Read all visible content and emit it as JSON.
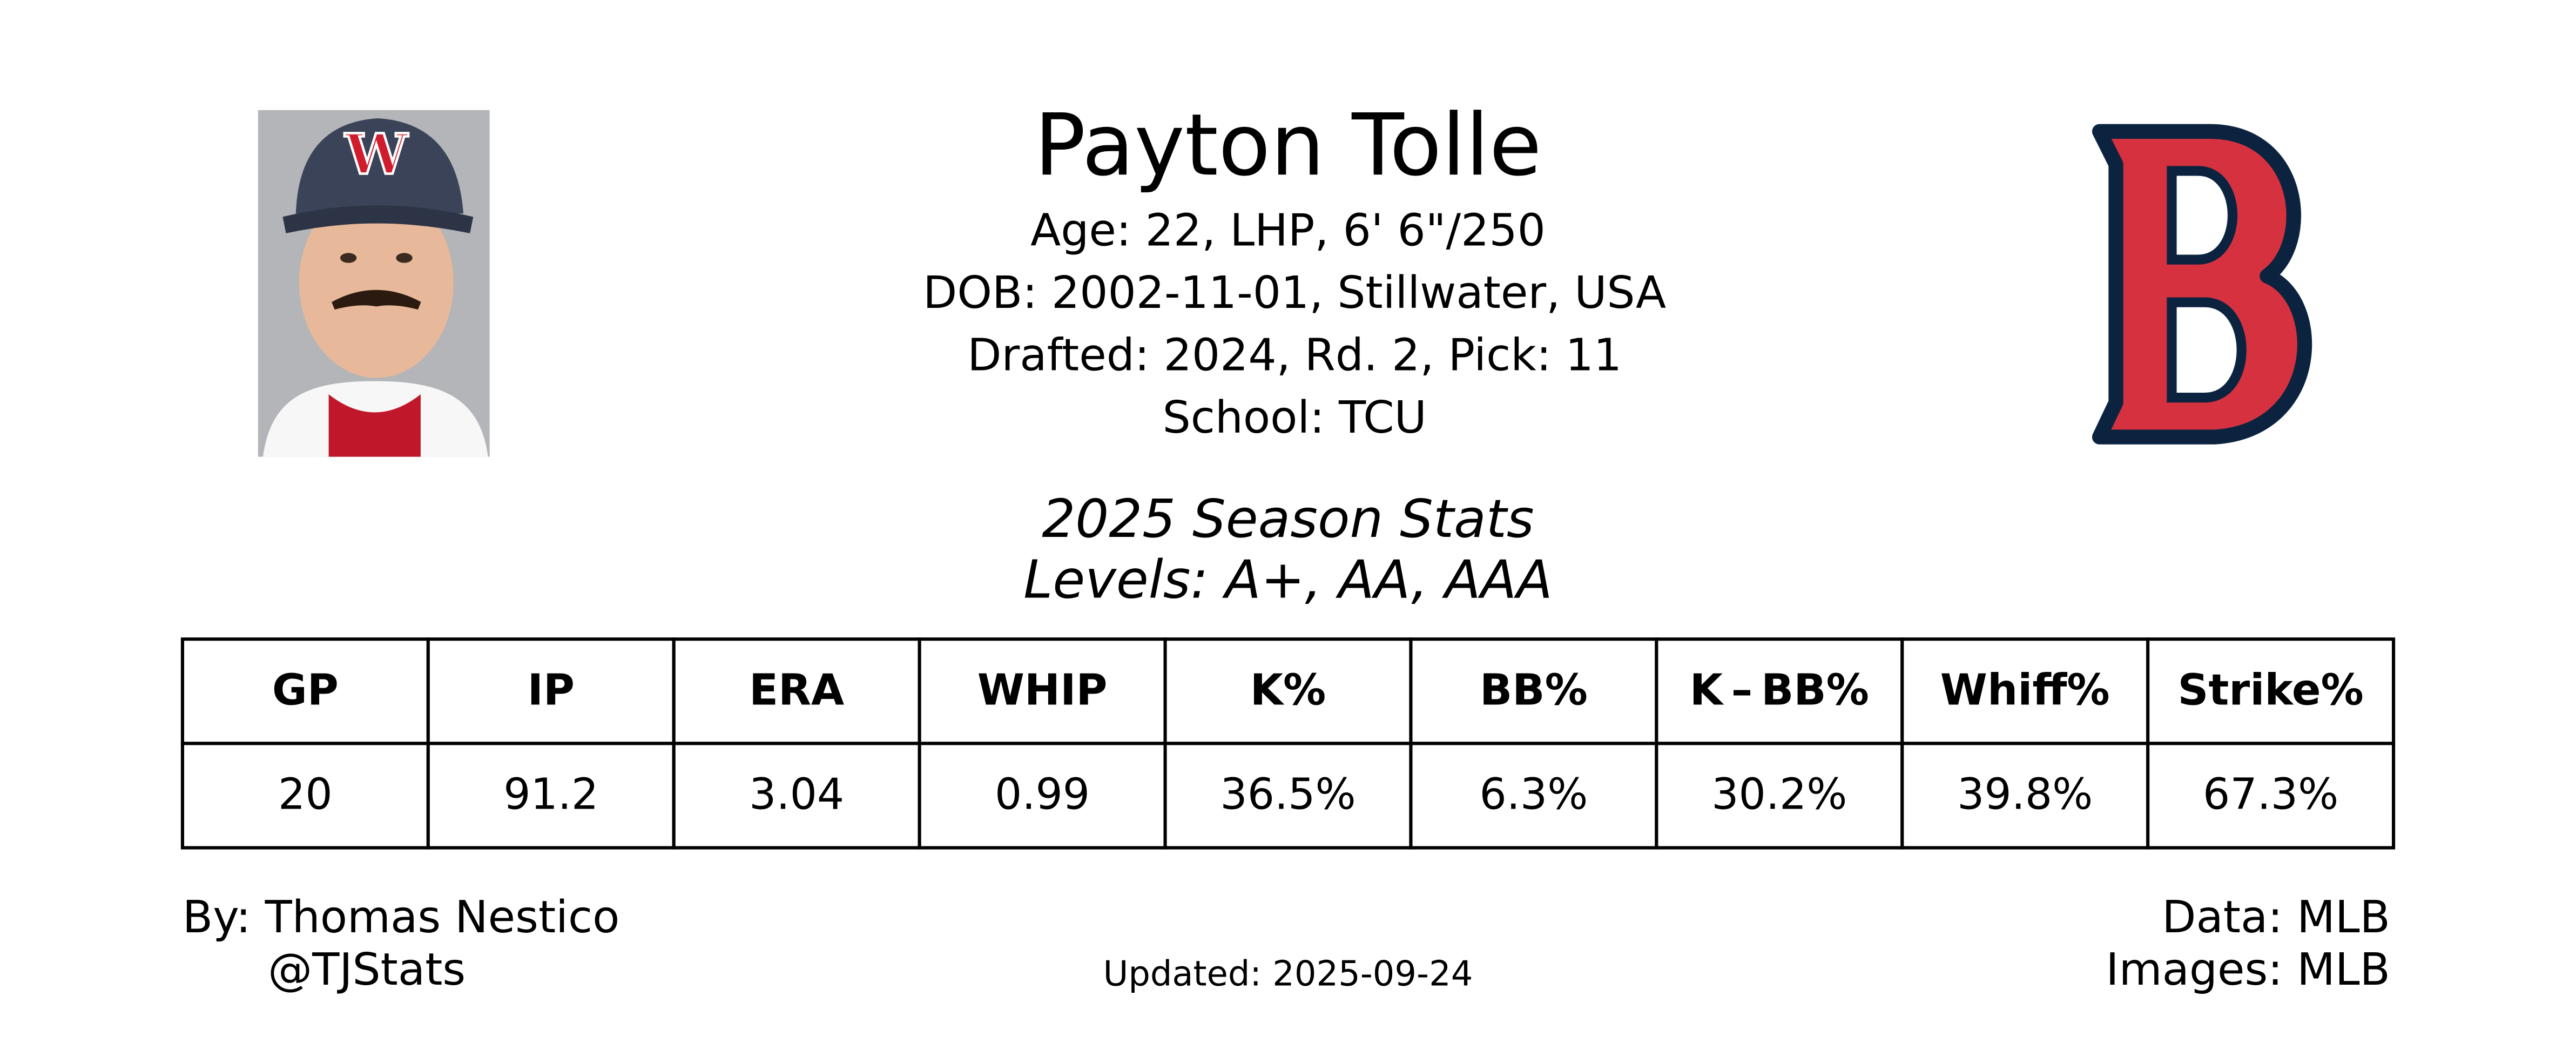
{
  "header": {
    "name": "Payton Tolle",
    "details": [
      "Age: 22, LHP, 6' 6\"/250",
      "DOB: 2002-11-01, Stillwater, USA",
      "Drafted: 2024, Rd. 2, Pick: 11",
      "School: TCU"
    ]
  },
  "stats": {
    "title": "2025 Season Stats",
    "subtitle": "Levels: A+, AA, AAA"
  },
  "table": {
    "headers": [
      "GP",
      "IP",
      "ERA",
      "WHIP",
      "K%",
      "BB%",
      "K – BB%",
      "Whiff%",
      "Strike%"
    ],
    "rows": [
      [
        "20",
        "91.2",
        "3.04",
        "0.99",
        "36.5%",
        "6.3%",
        "30.2%",
        "39.8%",
        "67.3%"
      ]
    ]
  },
  "footer": {
    "author": "By: Thomas Nestico",
    "handle": "@TJStats",
    "updated": "Updated: 2025-09-24",
    "data_source": "Data: MLB",
    "image_source": "Images: MLB"
  }
}
